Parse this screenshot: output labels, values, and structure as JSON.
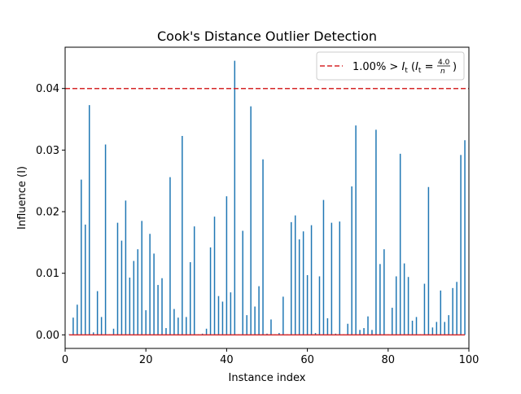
{
  "chart_data": {
    "type": "bar",
    "title": "Cook's Distance Outlier Detection",
    "xlabel": "Instance index",
    "ylabel": "Influence (I)",
    "xlim": [
      0,
      100
    ],
    "ylim": [
      -0.0022,
      0.0467
    ],
    "xticks": [
      0,
      20,
      40,
      60,
      80,
      100
    ],
    "xtick_labels": [
      "0",
      "20",
      "40",
      "60",
      "80",
      "100"
    ],
    "yticks": [
      0.0,
      0.01,
      0.02,
      0.03,
      0.04
    ],
    "ytick_labels": [
      "0.00",
      "0.01",
      "0.02",
      "0.03",
      "0.04"
    ],
    "grid": false,
    "legend_position": "top-right",
    "threshold": {
      "value": 0.04,
      "style": "dashed",
      "color": "#d62728",
      "legend_prefix": "1.00% > ",
      "legend_formula": "I_t (I_t = 4.0/n)"
    },
    "baseline": {
      "value": 0.0,
      "color": "#d62728"
    },
    "stem_color": "#1f77b4",
    "x": [
      1,
      2,
      3,
      4,
      5,
      6,
      7,
      8,
      9,
      10,
      11,
      12,
      13,
      14,
      15,
      16,
      17,
      18,
      19,
      20,
      21,
      22,
      23,
      24,
      25,
      26,
      27,
      28,
      29,
      30,
      31,
      32,
      33,
      34,
      35,
      36,
      37,
      38,
      39,
      40,
      41,
      42,
      43,
      44,
      45,
      46,
      47,
      48,
      49,
      50,
      51,
      52,
      53,
      54,
      55,
      56,
      57,
      58,
      59,
      60,
      61,
      62,
      63,
      64,
      65,
      66,
      67,
      68,
      69,
      70,
      71,
      72,
      73,
      74,
      75,
      76,
      77,
      78,
      79,
      80,
      81,
      82,
      83,
      84,
      85,
      86,
      87,
      88,
      89,
      90,
      91,
      92,
      93,
      94,
      95,
      96,
      97,
      98,
      99
    ],
    "values": [
      0.0001,
      0.0028,
      0.0049,
      0.0252,
      0.0179,
      0.0373,
      0.0004,
      0.0071,
      0.0029,
      0.0309,
      0.0001,
      0.001,
      0.0182,
      0.0153,
      0.0218,
      0.0093,
      0.012,
      0.0139,
      0.0185,
      0.004,
      0.0164,
      0.0132,
      0.0081,
      0.0092,
      0.0011,
      0.0256,
      0.0042,
      0.0028,
      0.0323,
      0.0029,
      0.0118,
      0.0176,
      0.0001,
      0.0002,
      0.001,
      0.0142,
      0.0192,
      0.0063,
      0.0054,
      0.0225,
      0.0069,
      0.0445,
      0.0001,
      0.0169,
      0.0032,
      0.0371,
      0.0046,
      0.0079,
      0.0285,
      0.0002,
      0.0025,
      0.0001,
      0.0003,
      0.0062,
      0.0001,
      0.0183,
      0.0194,
      0.0155,
      0.0168,
      0.0097,
      0.0178,
      0.0003,
      0.0095,
      0.0219,
      0.0027,
      0.0182,
      0.0002,
      0.0184,
      0.0001,
      0.0018,
      0.0241,
      0.034,
      0.0008,
      0.0011,
      0.003,
      0.0008,
      0.0333,
      0.0115,
      0.0139,
      0.0001,
      0.0044,
      0.0095,
      0.0294,
      0.0116,
      0.0094,
      0.0023,
      0.0029,
      0.0001,
      0.0083,
      0.024,
      0.0012,
      0.0021,
      0.0072,
      0.0021,
      0.0032,
      0.0076,
      0.0086,
      0.0292,
      0.0316
    ]
  }
}
